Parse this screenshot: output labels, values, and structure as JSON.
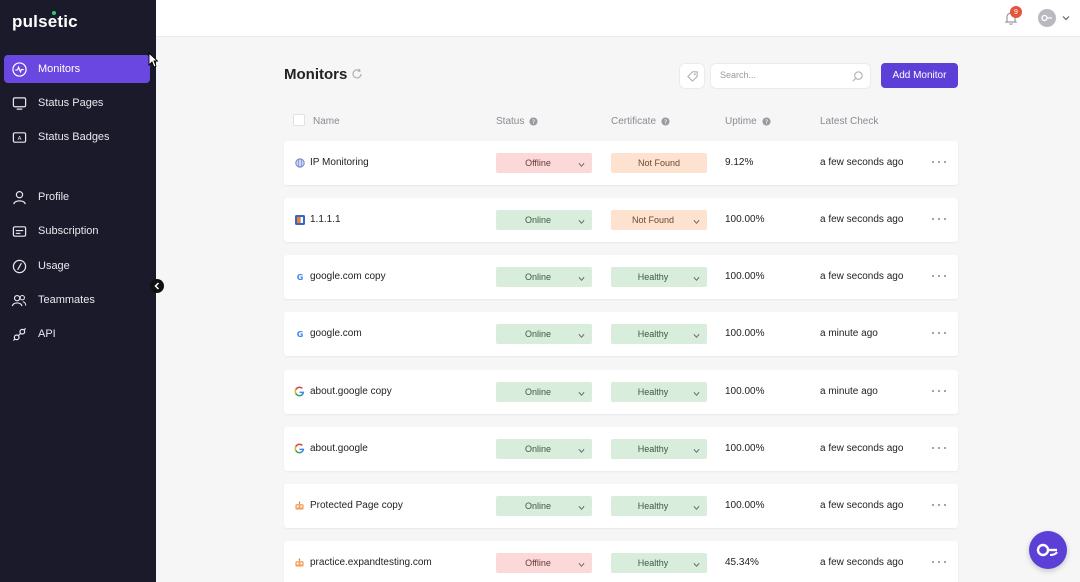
{
  "app": {
    "logo_text": "pulsetic"
  },
  "sidebar": {
    "items": [
      {
        "label": "Monitors",
        "icon": "activity-icon",
        "active": true
      },
      {
        "label": "Status Pages",
        "icon": "monitor-icon"
      },
      {
        "label": "Status Badges",
        "icon": "badge-icon"
      },
      {
        "label": "Profile",
        "icon": "user-icon"
      },
      {
        "label": "Subscription",
        "icon": "card-icon"
      },
      {
        "label": "Usage",
        "icon": "gauge-icon"
      },
      {
        "label": "Teammates",
        "icon": "users-icon"
      },
      {
        "label": "API",
        "icon": "plug-icon"
      }
    ]
  },
  "topbar": {
    "notification_count": "9"
  },
  "main": {
    "title": "Monitors",
    "search_placeholder": "Search...",
    "add_button": "Add Monitor",
    "columns": {
      "name": "Name",
      "status": "Status",
      "certificate": "Certificate",
      "uptime": "Uptime",
      "latest_check": "Latest Check"
    },
    "rows": [
      {
        "name": "IP Monitoring",
        "icon": "globe-icon",
        "status": "Offline",
        "certificate": "Not Found",
        "cert_has_dropdown": false,
        "uptime": "9.12%",
        "latest_check": "a few seconds ago"
      },
      {
        "name": "1.1.1.1",
        "icon": "cloudflare-icon",
        "status": "Online",
        "certificate": "Not Found",
        "cert_has_dropdown": true,
        "uptime": "100.00%",
        "latest_check": "a few seconds ago"
      },
      {
        "name": "google.com copy",
        "icon": "google-icon",
        "status": "Online",
        "certificate": "Healthy",
        "cert_has_dropdown": true,
        "uptime": "100.00%",
        "latest_check": "a few seconds ago"
      },
      {
        "name": "google.com",
        "icon": "google-icon",
        "status": "Online",
        "certificate": "Healthy",
        "cert_has_dropdown": true,
        "uptime": "100.00%",
        "latest_check": "a minute ago"
      },
      {
        "name": "about.google copy",
        "icon": "google-color-icon",
        "status": "Online",
        "certificate": "Healthy",
        "cert_has_dropdown": true,
        "uptime": "100.00%",
        "latest_check": "a minute ago"
      },
      {
        "name": "about.google",
        "icon": "google-color-icon",
        "status": "Online",
        "certificate": "Healthy",
        "cert_has_dropdown": true,
        "uptime": "100.00%",
        "latest_check": "a few seconds ago"
      },
      {
        "name": "Protected Page copy",
        "icon": "robot-icon",
        "status": "Online",
        "certificate": "Healthy",
        "cert_has_dropdown": true,
        "uptime": "100.00%",
        "latest_check": "a few seconds ago"
      },
      {
        "name": "practice.expandtesting.com",
        "icon": "robot-icon",
        "status": "Offline",
        "certificate": "Healthy",
        "cert_has_dropdown": true,
        "uptime": "45.34%",
        "latest_check": "a few seconds ago"
      }
    ]
  },
  "colors": {
    "sidebar_bg": "#1b1a2b",
    "accent": "#5b3fd6",
    "active_nav": "#6a47e0",
    "online_bg": "#d8eddc",
    "offline_bg": "#fbd9d9",
    "notfound_bg": "#fde2cf"
  }
}
